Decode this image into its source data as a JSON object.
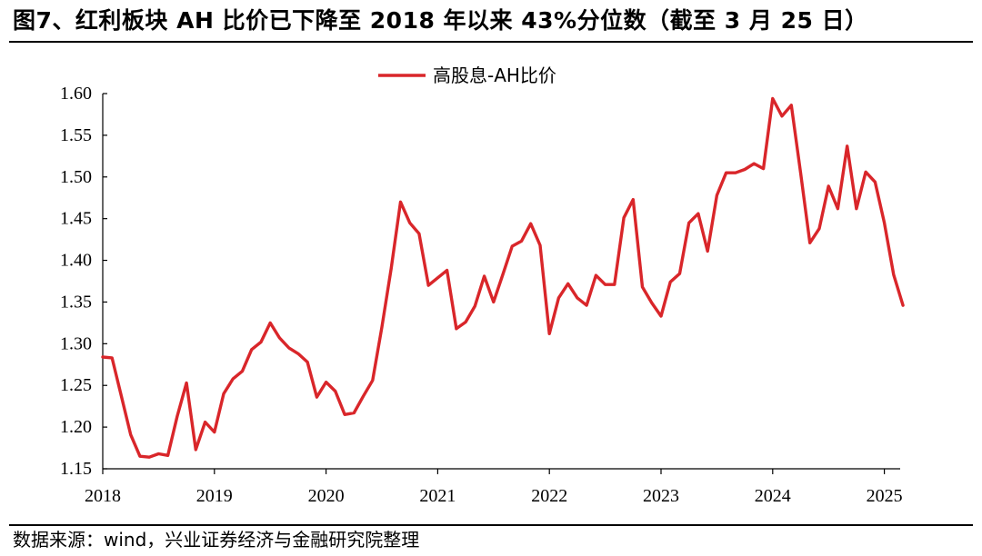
{
  "figure": {
    "title": "图7、红利板块 AH 比价已下降至 2018 年以来 43%分位数（截至 3 月 25 日）",
    "source": "数据来源：wind，兴业证券经济与金融研究院整理"
  },
  "chart_data": {
    "type": "line",
    "title": "",
    "xlabel": "",
    "ylabel": "",
    "ylim": [
      1.15,
      1.6
    ],
    "yticks": [
      "1.15",
      "1.20",
      "1.25",
      "1.30",
      "1.35",
      "1.40",
      "1.45",
      "1.50",
      "1.55",
      "1.60"
    ],
    "xlim": [
      "2018-01",
      "2025-03"
    ],
    "xticks": [
      "2018",
      "2019",
      "2020",
      "2021",
      "2022",
      "2023",
      "2024",
      "2025"
    ],
    "grid": false,
    "legend": "top-center",
    "series": [
      {
        "name": "高股息-AH比价",
        "color": "#d9262a",
        "x": [
          "2018-01",
          "2018-02",
          "2018-03",
          "2018-04",
          "2018-05",
          "2018-06",
          "2018-07",
          "2018-08",
          "2018-09",
          "2018-10",
          "2018-11",
          "2018-12",
          "2019-01",
          "2019-02",
          "2019-03",
          "2019-04",
          "2019-05",
          "2019-06",
          "2019-07",
          "2019-08",
          "2019-09",
          "2019-10",
          "2019-11",
          "2019-12",
          "2020-01",
          "2020-02",
          "2020-03",
          "2020-04",
          "2020-05",
          "2020-06",
          "2020-07",
          "2020-08",
          "2020-09",
          "2020-10",
          "2020-11",
          "2020-12",
          "2021-01",
          "2021-02",
          "2021-03",
          "2021-04",
          "2021-05",
          "2021-06",
          "2021-07",
          "2021-08",
          "2021-09",
          "2021-10",
          "2021-11",
          "2021-12",
          "2022-01",
          "2022-02",
          "2022-03",
          "2022-04",
          "2022-05",
          "2022-06",
          "2022-07",
          "2022-08",
          "2022-09",
          "2022-10",
          "2022-11",
          "2022-12",
          "2023-01",
          "2023-02",
          "2023-03",
          "2023-04",
          "2023-05",
          "2023-06",
          "2023-07",
          "2023-08",
          "2023-09",
          "2023-10",
          "2023-11",
          "2023-12",
          "2024-01",
          "2024-02",
          "2024-03",
          "2024-04",
          "2024-05",
          "2024-06",
          "2024-07",
          "2024-08",
          "2024-09",
          "2024-10",
          "2024-11",
          "2024-12",
          "2025-01",
          "2025-02",
          "2025-03"
        ],
        "values": [
          1.284,
          1.283,
          1.237,
          1.191,
          1.165,
          1.164,
          1.168,
          1.166,
          1.213,
          1.253,
          1.173,
          1.206,
          1.194,
          1.24,
          1.258,
          1.267,
          1.293,
          1.302,
          1.325,
          1.307,
          1.295,
          1.288,
          1.278,
          1.236,
          1.254,
          1.243,
          1.215,
          1.217,
          1.237,
          1.256,
          1.32,
          1.39,
          1.47,
          1.445,
          1.432,
          1.37,
          1.379,
          1.388,
          1.318,
          1.326,
          1.345,
          1.381,
          1.35,
          1.383,
          1.417,
          1.423,
          1.444,
          1.418,
          1.312,
          1.355,
          1.372,
          1.355,
          1.346,
          1.382,
          1.371,
          1.371,
          1.451,
          1.473,
          1.368,
          1.349,
          1.333,
          1.374,
          1.384,
          1.445,
          1.456,
          1.411,
          1.478,
          1.505,
          1.505,
          1.509,
          1.516,
          1.51,
          1.594,
          1.573,
          1.586,
          1.505,
          1.421,
          1.438,
          1.489,
          1.462,
          1.537,
          1.462,
          1.506,
          1.494,
          1.445,
          1.383,
          1.346
        ]
      }
    ]
  }
}
